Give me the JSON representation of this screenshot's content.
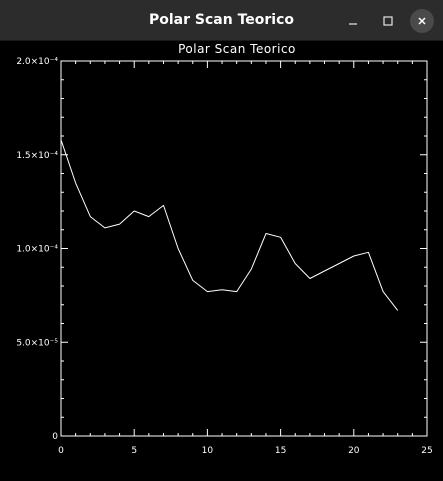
{
  "window": {
    "title": "Polar Scan Teorico"
  },
  "chart_data": {
    "type": "line",
    "title": "Polar Scan Teorico",
    "xlabel": "",
    "ylabel": "",
    "xlim": [
      0,
      25
    ],
    "ylim": [
      0,
      0.0002
    ],
    "x_ticks": [
      "0",
      "5",
      "10",
      "15",
      "20",
      "25"
    ],
    "y_ticks": [
      "0",
      "5.0×10⁻⁵",
      "1.0×10⁻⁴",
      "1.5×10⁻⁴",
      "2.0×10⁻⁴"
    ],
    "grid": false,
    "series": [
      {
        "x": [
          0,
          1,
          2,
          3,
          4,
          5,
          6,
          7,
          8,
          9,
          10,
          11,
          12,
          13,
          14,
          15,
          16,
          17,
          18,
          19,
          20,
          21,
          22,
          23
        ],
        "values": [
          0.000158,
          0.000135,
          0.000117,
          0.000111,
          0.000113,
          0.00012,
          0.000117,
          0.000123,
          0.0001,
          8.3e-05,
          7.7e-05,
          7.8e-05,
          7.7e-05,
          8.9e-05,
          0.000108,
          0.000106,
          9.2e-05,
          8.4e-05,
          8.8e-05,
          9.2e-05,
          9.6e-05,
          9.8e-05,
          7.7e-05,
          6.7e-05
        ]
      }
    ],
    "colors": {
      "line": "#ffffff",
      "background": "#000000",
      "axes": "#ffffff"
    }
  },
  "titlebar": {
    "minimize_icon": "minimize-icon",
    "maximize_icon": "maximize-icon",
    "close_icon": "close-icon"
  }
}
